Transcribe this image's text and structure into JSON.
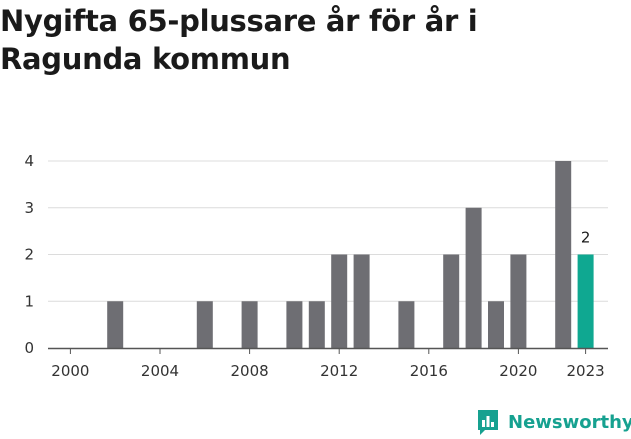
{
  "chart_data": {
    "type": "bar",
    "title": "Nygifta 65-plussare år för år i Ragunda kommun",
    "x": [
      2002,
      2006,
      2008,
      2010,
      2011,
      2012,
      2013,
      2015,
      2017,
      2018,
      2019,
      2020,
      2022,
      2023
    ],
    "values": [
      1,
      1,
      1,
      1,
      1,
      2,
      2,
      1,
      2,
      3,
      1,
      2,
      4,
      2
    ],
    "highlight": {
      "x": 2023,
      "label": "2",
      "color": "#0fa891"
    },
    "bar_color": "#6e6e73",
    "xlim": [
      1999,
      2024
    ],
    "ylim": [
      0,
      4
    ],
    "y_ticks": [
      "0",
      "1",
      "2",
      "3",
      "4"
    ],
    "x_ticks": [
      "2000",
      "2004",
      "2008",
      "2012",
      "2016",
      "2020",
      "2023"
    ],
    "grid": true
  },
  "brand": {
    "name": "Newsworthy",
    "icon": "newsworthy-logo-icon",
    "color": "#16a190"
  }
}
